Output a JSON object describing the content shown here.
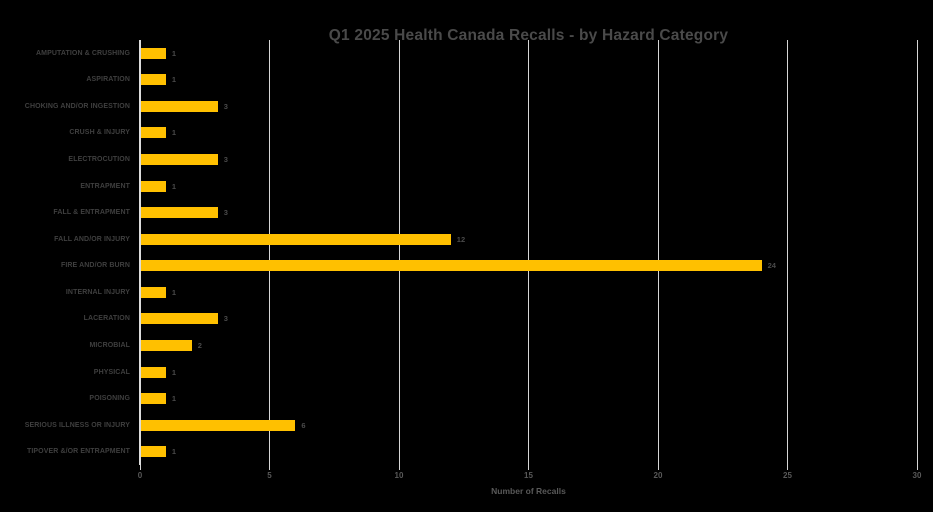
{
  "title": "Q1 2025 Health Canada Recalls - by Hazard Category",
  "chart_data": {
    "type": "bar",
    "orientation": "horizontal",
    "title": "Q1 2025 Health Canada Recalls - by Hazard Category",
    "xlabel": "Number of Recalls",
    "ylabel": "",
    "categories": [
      "AMPUTATION & CRUSHING",
      "ASPIRATION",
      "CHOKING AND/OR INGESTION",
      "CRUSH & INJURY",
      "ELECTROCUTION",
      "ENTRAPMENT",
      "FALL & ENTRAPMENT",
      "FALL AND/OR INJURY",
      "FIRE AND/OR BURN",
      "INTERNAL INJURY",
      "LACERATION",
      "MICROBIAL",
      "PHYSICAL",
      "POISONING",
      "SERIOUS ILLNESS OR INJURY",
      "TIPOVER &/OR ENTRAPMENT"
    ],
    "values": [
      1,
      1,
      3,
      1,
      3,
      1,
      3,
      12,
      24,
      1,
      3,
      2,
      1,
      1,
      6,
      1
    ],
    "x_ticks": [
      0,
      5,
      10,
      15,
      20,
      25,
      30
    ],
    "xlim": [
      0,
      30
    ],
    "grid": "vertical",
    "legend": "none",
    "data_labels": true,
    "colors": {
      "bar": "#FFC000",
      "background": "#000000",
      "title_text": "#4a4a4a",
      "category_text": "#3f3f3f",
      "value_text": "#4a4a4a",
      "axis_text": "#595959",
      "gridline": "#d6d6d6"
    }
  }
}
